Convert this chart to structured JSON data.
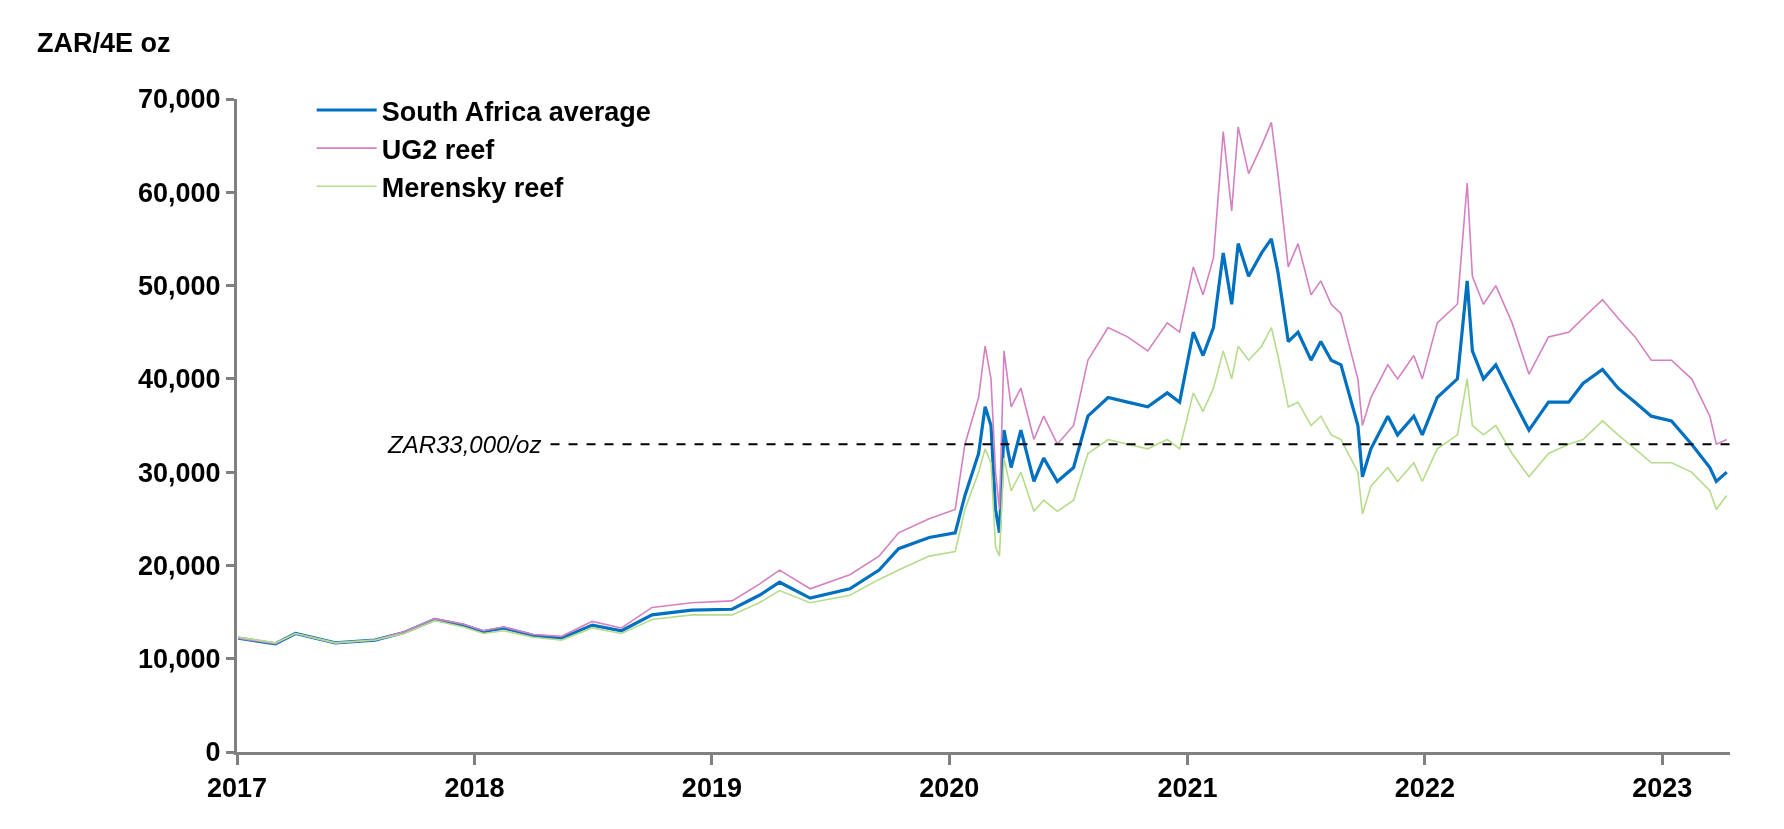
{
  "chart_data": {
    "type": "line",
    "ylabel": "ZAR/4E oz",
    "x": [
      "2017-01-03",
      "2017-03-01",
      "2017-04-01",
      "2017-06-01",
      "2017-08-01",
      "2017-09-15",
      "2017-11-01",
      "2017-12-15",
      "2018-01-15",
      "2018-02-15",
      "2018-04-01",
      "2018-05-15",
      "2018-07-01",
      "2018-08-15",
      "2018-10-01",
      "2018-12-01",
      "2019-02-01",
      "2019-03-15",
      "2019-04-15",
      "2019-06-01",
      "2019-08-01",
      "2019-09-15",
      "2019-10-15",
      "2019-12-01",
      "2020-01-10",
      "2020-01-25",
      "2020-02-15",
      "2020-02-25",
      "2020-03-05",
      "2020-03-12",
      "2020-03-18",
      "2020-03-25",
      "2020-04-05",
      "2020-04-20",
      "2020-05-10",
      "2020-05-25",
      "2020-06-15",
      "2020-07-10",
      "2020-08-01",
      "2020-09-01",
      "2020-10-01",
      "2020-11-01",
      "2020-12-01",
      "2020-12-20",
      "2021-01-10",
      "2021-01-25",
      "2021-02-10",
      "2021-02-25",
      "2021-03-10",
      "2021-03-20",
      "2021-04-05",
      "2021-04-25",
      "2021-05-10",
      "2021-05-20",
      "2021-06-05",
      "2021-06-20",
      "2021-07-10",
      "2021-07-25",
      "2021-08-10",
      "2021-08-25",
      "2021-09-20",
      "2021-09-27",
      "2021-10-10",
      "2021-11-05",
      "2021-11-20",
      "2021-12-15",
      "2021-12-28",
      "2022-01-20",
      "2022-02-20",
      "2022-03-07",
      "2022-03-15",
      "2022-04-01",
      "2022-04-20",
      "2022-05-15",
      "2022-06-10",
      "2022-07-10",
      "2022-08-10",
      "2022-09-01",
      "2022-10-01",
      "2022-10-25",
      "2022-11-20",
      "2022-12-15",
      "2023-01-15",
      "2023-02-15",
      "2023-03-15",
      "2023-03-25",
      "2023-04-10"
    ],
    "series": [
      {
        "name": "South Africa average",
        "color": "#0070c0",
        "values": [
          12200,
          11600,
          12700,
          11700,
          12000,
          12800,
          14200,
          13600,
          12900,
          13300,
          12500,
          12200,
          13600,
          13000,
          14700,
          15200,
          15300,
          16800,
          18200,
          16500,
          17500,
          19500,
          21800,
          23000,
          23500,
          27500,
          32000,
          37000,
          35000,
          26000,
          23500,
          34500,
          30500,
          34500,
          29000,
          31500,
          29000,
          30500,
          36000,
          38000,
          37500,
          37000,
          38500,
          37500,
          45000,
          42500,
          45500,
          53500,
          48000,
          54500,
          51000,
          53500,
          55000,
          51500,
          44000,
          45000,
          42000,
          44000,
          42000,
          41500,
          35000,
          29500,
          32500,
          36000,
          34000,
          36000,
          34000,
          38000,
          40000,
          50500,
          43000,
          40000,
          41500,
          38000,
          34500,
          37500,
          37500,
          39500,
          41000,
          39000,
          37500,
          36000,
          35500,
          33000,
          30500,
          29000,
          30000
        ]
      },
      {
        "name": "UG2 reef",
        "color": "#d580c0",
        "values": [
          12200,
          11600,
          12700,
          11700,
          12000,
          12900,
          14300,
          13700,
          13000,
          13400,
          12600,
          12400,
          14000,
          13300,
          15500,
          16000,
          16200,
          18000,
          19500,
          17500,
          19000,
          21000,
          23500,
          25000,
          26000,
          33000,
          38000,
          43500,
          40000,
          30000,
          26000,
          43000,
          37000,
          39000,
          33500,
          36000,
          33000,
          35000,
          42000,
          45500,
          44500,
          43000,
          46000,
          45000,
          52000,
          49000,
          53000,
          66500,
          58000,
          67000,
          62000,
          65000,
          67500,
          62000,
          52000,
          54500,
          49000,
          50500,
          48000,
          47000,
          40000,
          35000,
          38000,
          41500,
          40000,
          42500,
          40000,
          46000,
          48000,
          61000,
          51000,
          48000,
          50000,
          46000,
          40500,
          44500,
          45000,
          46500,
          48500,
          46500,
          44500,
          42000,
          42000,
          40000,
          36000,
          33000,
          33500
        ]
      },
      {
        "name": "Merensky reef",
        "color": "#b5dc8a",
        "values": [
          12300,
          11700,
          12700,
          11700,
          12000,
          12700,
          14100,
          13400,
          12700,
          13000,
          12300,
          12000,
          13300,
          12700,
          14200,
          14700,
          14700,
          16000,
          17300,
          16000,
          16800,
          18500,
          19500,
          21000,
          21500,
          26000,
          30000,
          32500,
          31000,
          22000,
          21000,
          31500,
          28000,
          30000,
          25800,
          27000,
          25800,
          27000,
          32000,
          33500,
          33000,
          32500,
          33500,
          32500,
          38500,
          36500,
          39000,
          43000,
          40000,
          43500,
          42000,
          43500,
          45500,
          42500,
          37000,
          37500,
          35000,
          36000,
          34000,
          33500,
          30000,
          25500,
          28500,
          30500,
          29000,
          31000,
          29000,
          32500,
          34000,
          40000,
          35000,
          34000,
          35000,
          32000,
          29500,
          32000,
          33000,
          33500,
          35500,
          34000,
          32500,
          31000,
          31000,
          30000,
          28000,
          26000,
          27500
        ]
      }
    ],
    "xlim": [
      "2017-01-01",
      "2023-04-15"
    ],
    "xticks": [
      {
        "value": "2017-01-01",
        "label": "2017"
      },
      {
        "value": "2018-01-01",
        "label": "2018"
      },
      {
        "value": "2019-01-01",
        "label": "2019"
      },
      {
        "value": "2020-01-01",
        "label": "2020"
      },
      {
        "value": "2021-01-01",
        "label": "2021"
      },
      {
        "value": "2022-01-01",
        "label": "2022"
      },
      {
        "value": "2023-01-01",
        "label": "2023"
      }
    ],
    "ylim": [
      0,
      70000
    ],
    "yticks": [
      0,
      {
        "value": 10000,
        "label": "10,000"
      },
      {
        "value": 20000,
        "label": "20,000"
      },
      {
        "value": 30000,
        "label": "30,000"
      },
      {
        "value": 40000,
        "label": "40,000"
      },
      {
        "value": 50000,
        "label": "50,000"
      },
      {
        "value": 60000,
        "label": "60,000"
      },
      {
        "value": 70000,
        "label": "70,000"
      }
    ],
    "ref_lines": [
      {
        "axis": "y",
        "value": 33000,
        "label": "ZAR33,000/oz",
        "color": "#000000",
        "line_style": "dashed"
      }
    ],
    "legend": "top left",
    "marker": "none",
    "line_style": "solid"
  }
}
